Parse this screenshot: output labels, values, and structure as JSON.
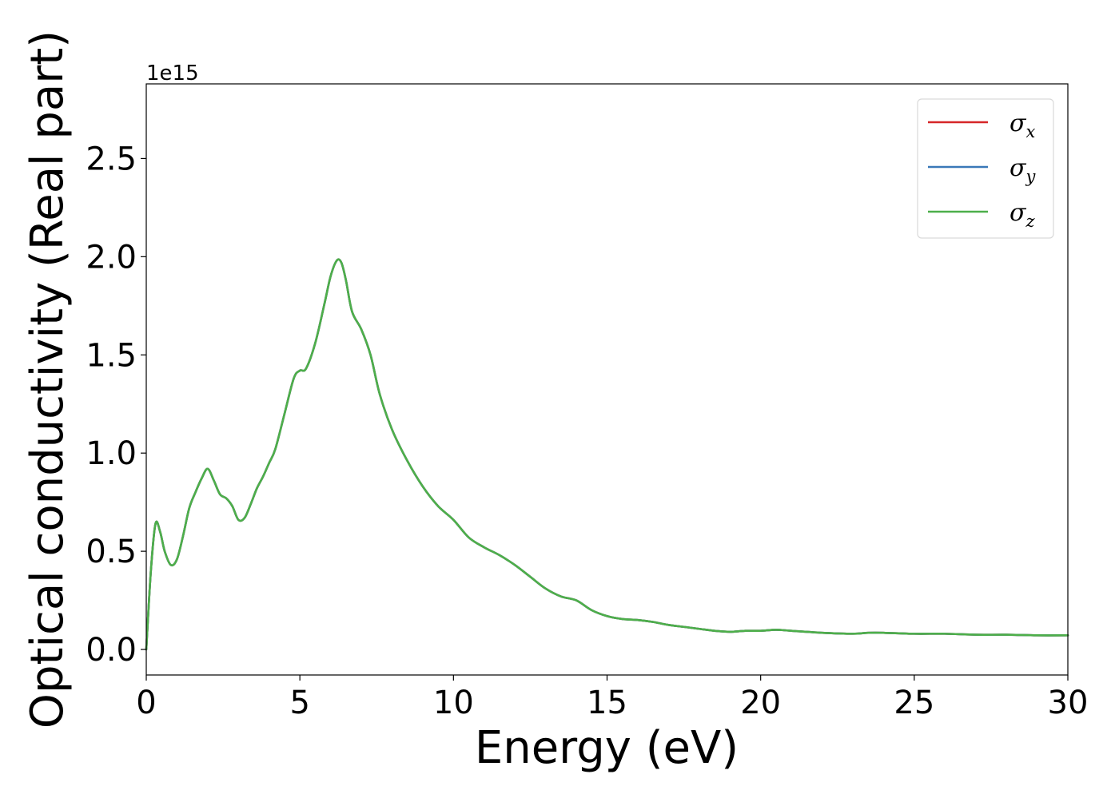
{
  "chart_data": {
    "type": "line",
    "xlabel": "Energy (eV)",
    "ylabel": "Optical conductivity (Real part)",
    "y_offset_text": "1e15",
    "y_multiplier": 1000000000000000.0,
    "xlim": [
      0,
      30
    ],
    "ylim": [
      -0.13,
      2.88
    ],
    "xticks": [
      0,
      5,
      10,
      15,
      20,
      25,
      30
    ],
    "xtick_labels": [
      "0",
      "5",
      "10",
      "15",
      "20",
      "25",
      "30"
    ],
    "yticks": [
      0.0,
      0.5,
      1.0,
      1.5,
      2.0,
      2.5
    ],
    "ytick_labels": [
      "0.0",
      "0.5",
      "1.0",
      "1.5",
      "2.0",
      "2.5"
    ],
    "grid": false,
    "legend_position": "top-right",
    "series": [
      {
        "name": "σ_x",
        "label_base": "σ",
        "label_sub": "x",
        "color": "#d62728",
        "x": [
          0,
          0.15,
          0.3,
          0.45,
          0.6,
          0.8,
          1.0,
          1.2,
          1.4,
          1.6,
          1.8,
          2.0,
          2.2,
          2.4,
          2.6,
          2.8,
          3.0,
          3.2,
          3.4,
          3.6,
          3.8,
          4.0,
          4.2,
          4.5,
          4.8,
          5.0,
          5.2,
          5.5,
          5.8,
          6.0,
          6.2,
          6.35,
          6.5,
          6.7,
          7.0,
          7.3,
          7.6,
          8.0,
          8.5,
          9.0,
          9.5,
          10.0,
          10.5,
          11.0,
          11.5,
          12.0,
          12.5,
          13.0,
          13.5,
          14.0,
          14.5,
          15.0,
          15.5,
          16.0,
          16.5,
          17.0,
          17.5,
          18.0,
          18.5,
          19.0,
          19.5,
          20.0,
          20.5,
          21.0,
          22.0,
          23.0,
          23.5,
          24.0,
          25.0,
          26.0,
          27.0,
          28.0,
          29.0,
          30.0
        ],
        "y": [
          0.0,
          0.4,
          0.64,
          0.6,
          0.5,
          0.43,
          0.46,
          0.58,
          0.72,
          0.8,
          0.87,
          0.92,
          0.86,
          0.79,
          0.77,
          0.73,
          0.66,
          0.67,
          0.74,
          0.82,
          0.88,
          0.95,
          1.02,
          1.2,
          1.38,
          1.42,
          1.43,
          1.56,
          1.76,
          1.9,
          1.98,
          1.97,
          1.88,
          1.72,
          1.63,
          1.5,
          1.3,
          1.12,
          0.96,
          0.83,
          0.73,
          0.66,
          0.57,
          0.52,
          0.48,
          0.43,
          0.37,
          0.31,
          0.27,
          0.25,
          0.2,
          0.17,
          0.155,
          0.15,
          0.14,
          0.125,
          0.115,
          0.105,
          0.095,
          0.09,
          0.095,
          0.095,
          0.1,
          0.095,
          0.085,
          0.08,
          0.085,
          0.085,
          0.08,
          0.08,
          0.075,
          0.075,
          0.072,
          0.072
        ]
      },
      {
        "name": "σ_y",
        "label_base": "σ",
        "label_sub": "y",
        "color": "#3a78b8",
        "x": [
          0,
          0.15,
          0.3,
          0.45,
          0.6,
          0.8,
          1.0,
          1.2,
          1.4,
          1.6,
          1.8,
          2.0,
          2.2,
          2.4,
          2.6,
          2.8,
          3.0,
          3.2,
          3.4,
          3.6,
          3.8,
          4.0,
          4.2,
          4.5,
          4.8,
          5.0,
          5.2,
          5.5,
          5.8,
          6.0,
          6.2,
          6.35,
          6.5,
          6.7,
          7.0,
          7.3,
          7.6,
          8.0,
          8.5,
          9.0,
          9.5,
          10.0,
          10.5,
          11.0,
          11.5,
          12.0,
          12.5,
          13.0,
          13.5,
          14.0,
          14.5,
          15.0,
          15.5,
          16.0,
          16.5,
          17.0,
          17.5,
          18.0,
          18.5,
          19.0,
          19.5,
          20.0,
          20.5,
          21.0,
          22.0,
          23.0,
          23.5,
          24.0,
          25.0,
          26.0,
          27.0,
          28.0,
          29.0,
          30.0
        ],
        "y": [
          0.0,
          0.4,
          0.64,
          0.6,
          0.5,
          0.43,
          0.46,
          0.58,
          0.72,
          0.8,
          0.87,
          0.92,
          0.86,
          0.79,
          0.77,
          0.73,
          0.66,
          0.67,
          0.74,
          0.82,
          0.88,
          0.95,
          1.02,
          1.2,
          1.38,
          1.42,
          1.43,
          1.56,
          1.76,
          1.9,
          1.98,
          1.97,
          1.88,
          1.72,
          1.63,
          1.5,
          1.3,
          1.12,
          0.96,
          0.83,
          0.73,
          0.66,
          0.57,
          0.52,
          0.48,
          0.43,
          0.37,
          0.31,
          0.27,
          0.25,
          0.2,
          0.17,
          0.155,
          0.15,
          0.14,
          0.125,
          0.115,
          0.105,
          0.095,
          0.09,
          0.095,
          0.095,
          0.1,
          0.095,
          0.085,
          0.08,
          0.085,
          0.085,
          0.08,
          0.08,
          0.075,
          0.075,
          0.072,
          0.072
        ]
      },
      {
        "name": "σ_z",
        "label_base": "σ",
        "label_sub": "z",
        "color": "#4daf4a",
        "x": [
          0,
          0.15,
          0.3,
          0.45,
          0.6,
          0.8,
          1.0,
          1.2,
          1.4,
          1.6,
          1.8,
          2.0,
          2.2,
          2.4,
          2.6,
          2.8,
          3.0,
          3.2,
          3.4,
          3.6,
          3.8,
          4.0,
          4.2,
          4.5,
          4.8,
          5.0,
          5.2,
          5.5,
          5.8,
          6.0,
          6.2,
          6.35,
          6.5,
          6.7,
          7.0,
          7.3,
          7.6,
          8.0,
          8.5,
          9.0,
          9.5,
          10.0,
          10.5,
          11.0,
          11.5,
          12.0,
          12.5,
          13.0,
          13.5,
          14.0,
          14.5,
          15.0,
          15.5,
          16.0,
          16.5,
          17.0,
          17.5,
          18.0,
          18.5,
          19.0,
          19.5,
          20.0,
          20.5,
          21.0,
          22.0,
          23.0,
          23.5,
          24.0,
          25.0,
          26.0,
          27.0,
          28.0,
          29.0,
          30.0
        ],
        "y": [
          0.0,
          0.4,
          0.64,
          0.6,
          0.5,
          0.43,
          0.46,
          0.58,
          0.72,
          0.8,
          0.87,
          0.92,
          0.86,
          0.79,
          0.77,
          0.73,
          0.66,
          0.67,
          0.74,
          0.82,
          0.88,
          0.95,
          1.02,
          1.2,
          1.38,
          1.42,
          1.43,
          1.56,
          1.76,
          1.9,
          1.98,
          1.97,
          1.88,
          1.72,
          1.63,
          1.5,
          1.3,
          1.12,
          0.96,
          0.83,
          0.73,
          0.66,
          0.57,
          0.52,
          0.48,
          0.43,
          0.37,
          0.31,
          0.27,
          0.25,
          0.2,
          0.17,
          0.155,
          0.15,
          0.14,
          0.125,
          0.115,
          0.105,
          0.095,
          0.09,
          0.095,
          0.095,
          0.1,
          0.095,
          0.085,
          0.08,
          0.085,
          0.085,
          0.08,
          0.08,
          0.075,
          0.075,
          0.072,
          0.072
        ]
      }
    ]
  }
}
